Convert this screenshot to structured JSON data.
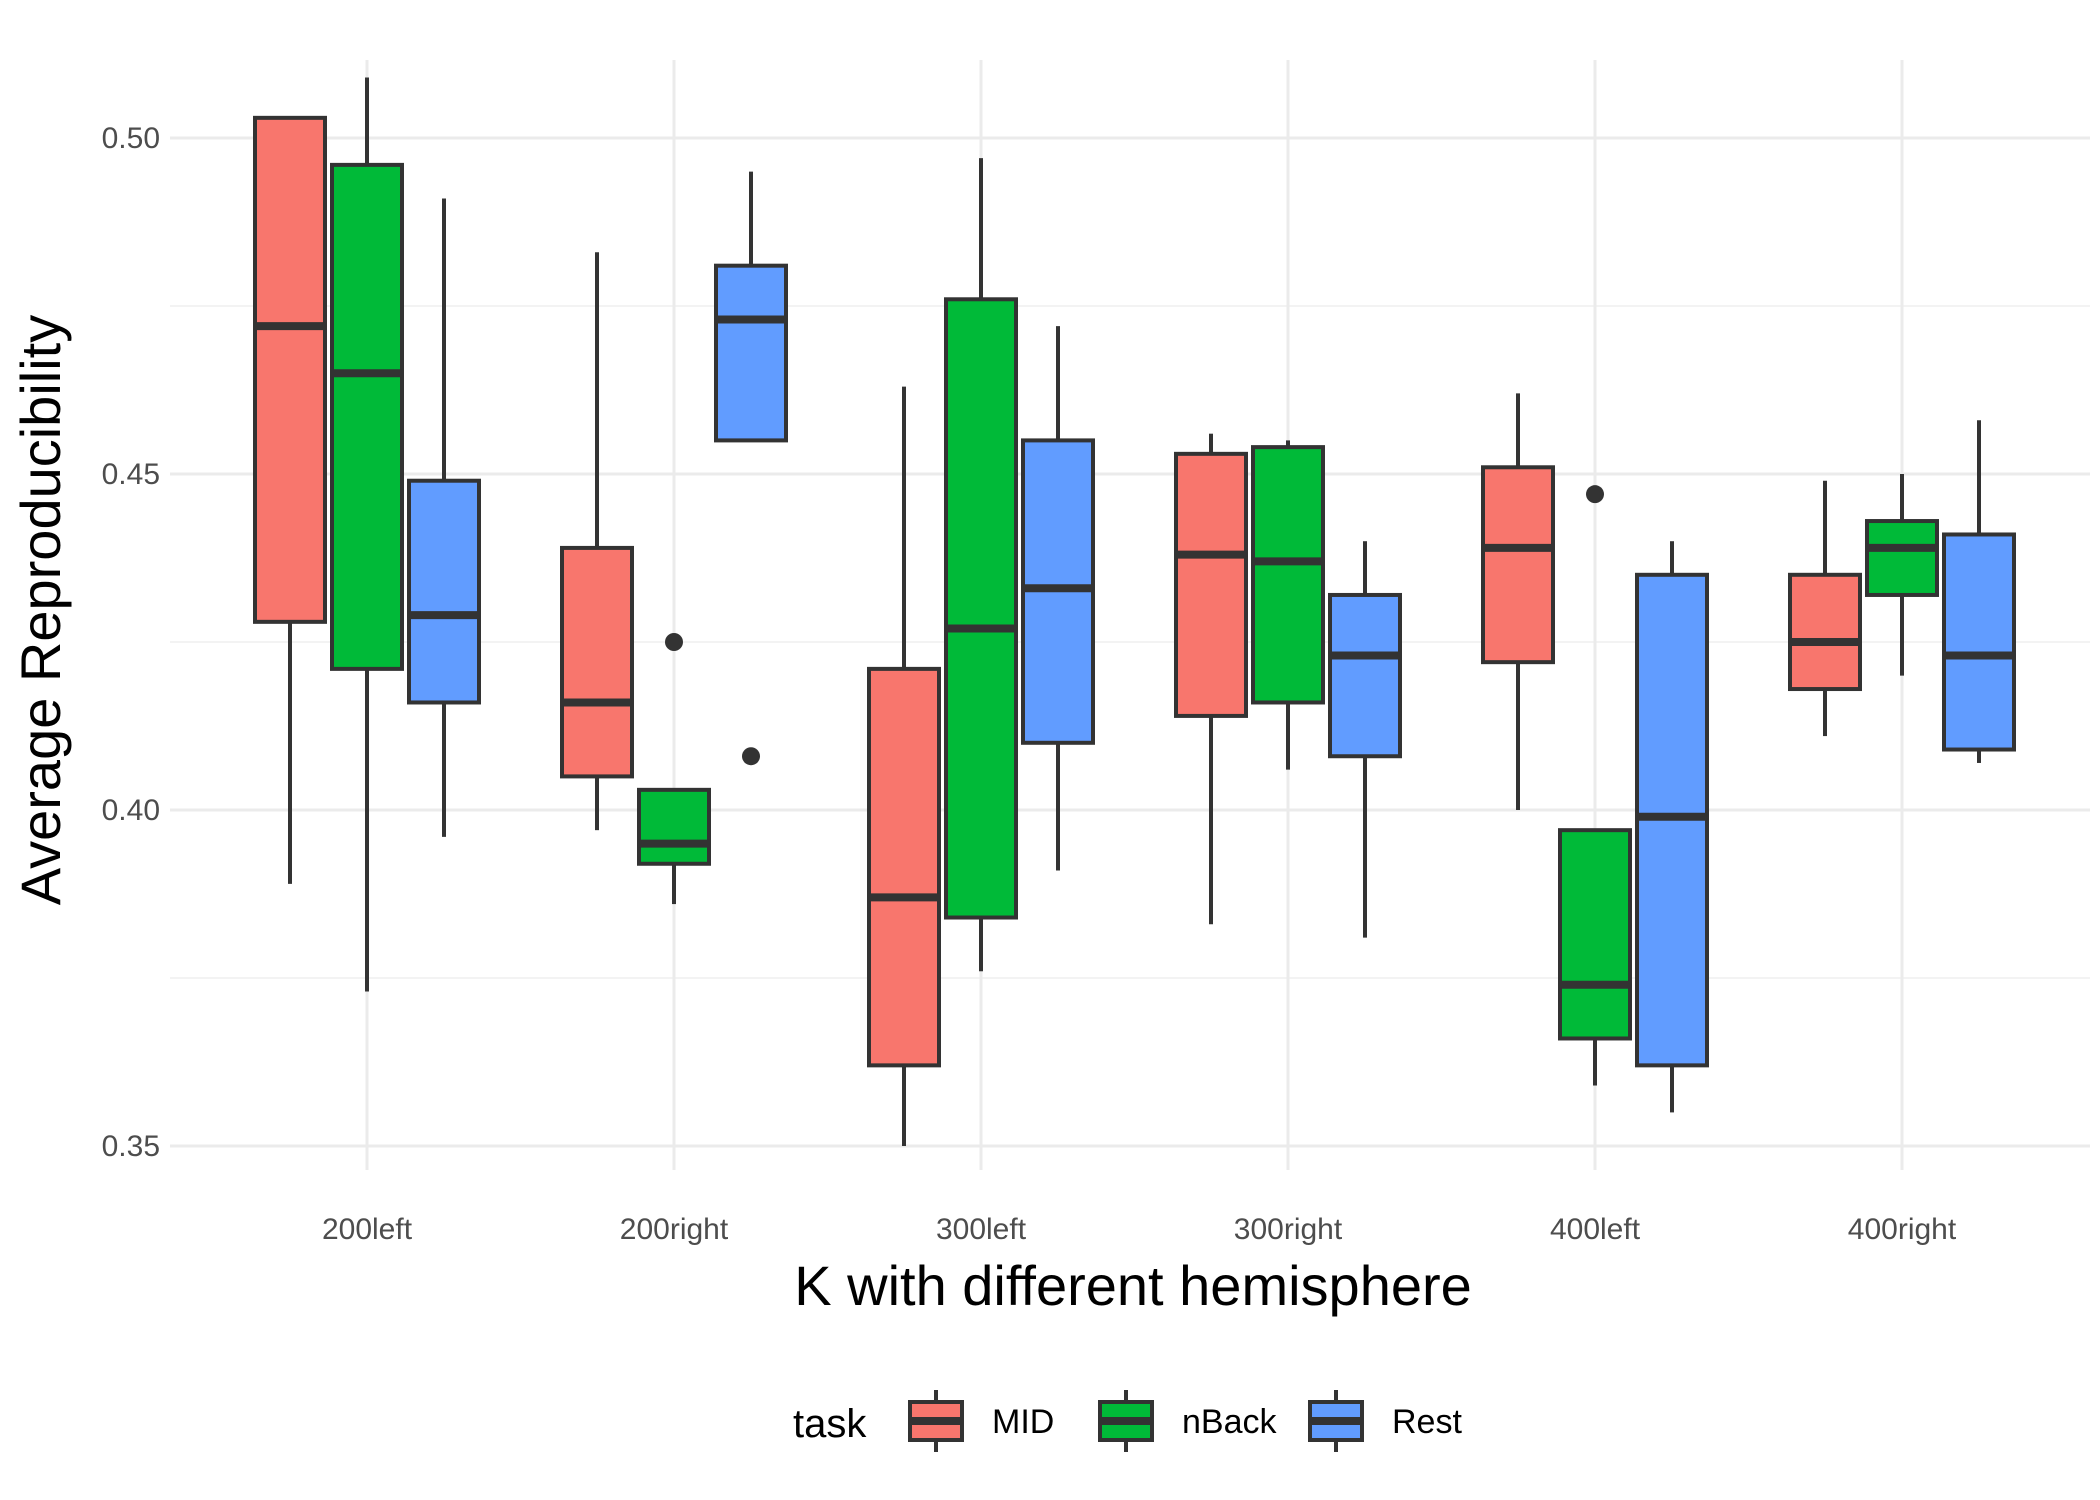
{
  "chart_data": {
    "type": "boxplot",
    "title": "",
    "xlabel": "K with different hemisphere",
    "ylabel": "Average Reproducibility",
    "ylim": [
      0.34,
      0.52
    ],
    "yticks": [
      "0.35",
      "0.40",
      "0.45",
      "0.50"
    ],
    "ytick_values": [
      0.35,
      0.4,
      0.45,
      0.5
    ],
    "grid": true,
    "legend": {
      "title": "task",
      "placement": "bottom"
    },
    "categories": [
      "200left",
      "200right",
      "300left",
      "300right",
      "400left",
      "400right"
    ],
    "series": [
      {
        "name": "MID",
        "color": "#F8766D",
        "boxes": [
          {
            "min": 0.389,
            "q1": 0.428,
            "median": 0.472,
            "q3": 0.503,
            "max": 0.503,
            "outliers": []
          },
          {
            "min": 0.397,
            "q1": 0.405,
            "median": 0.416,
            "q3": 0.439,
            "max": 0.483,
            "outliers": []
          },
          {
            "min": 0.35,
            "q1": 0.362,
            "median": 0.387,
            "q3": 0.421,
            "max": 0.463,
            "outliers": []
          },
          {
            "min": 0.383,
            "q1": 0.414,
            "median": 0.438,
            "q3": 0.453,
            "max": 0.456,
            "outliers": []
          },
          {
            "min": 0.4,
            "q1": 0.422,
            "median": 0.439,
            "q3": 0.451,
            "max": 0.462,
            "outliers": []
          },
          {
            "min": 0.411,
            "q1": 0.418,
            "median": 0.425,
            "q3": 0.435,
            "max": 0.449,
            "outliers": []
          }
        ]
      },
      {
        "name": "nBack",
        "color": "#00BA38",
        "boxes": [
          {
            "min": 0.373,
            "q1": 0.421,
            "median": 0.465,
            "q3": 0.496,
            "max": 0.509,
            "outliers": []
          },
          {
            "min": 0.386,
            "q1": 0.392,
            "median": 0.395,
            "q3": 0.403,
            "max": 0.403,
            "outliers": [
              0.425
            ]
          },
          {
            "min": 0.376,
            "q1": 0.384,
            "median": 0.427,
            "q3": 0.476,
            "max": 0.497,
            "outliers": []
          },
          {
            "min": 0.406,
            "q1": 0.416,
            "median": 0.437,
            "q3": 0.454,
            "max": 0.455,
            "outliers": []
          },
          {
            "min": 0.359,
            "q1": 0.366,
            "median": 0.374,
            "q3": 0.397,
            "max": 0.397,
            "outliers": [
              0.447
            ]
          },
          {
            "min": 0.42,
            "q1": 0.432,
            "median": 0.439,
            "q3": 0.443,
            "max": 0.45,
            "outliers": []
          }
        ]
      },
      {
        "name": "Rest",
        "color": "#619CFF",
        "boxes": [
          {
            "min": 0.396,
            "q1": 0.416,
            "median": 0.429,
            "q3": 0.449,
            "max": 0.491,
            "outliers": []
          },
          {
            "min": 0.455,
            "q1": 0.455,
            "median": 0.473,
            "q3": 0.481,
            "max": 0.495,
            "outliers": [
              0.408
            ]
          },
          {
            "min": 0.391,
            "q1": 0.41,
            "median": 0.433,
            "q3": 0.455,
            "max": 0.472,
            "outliers": []
          },
          {
            "min": 0.381,
            "q1": 0.408,
            "median": 0.423,
            "q3": 0.432,
            "max": 0.44,
            "outliers": []
          },
          {
            "min": 0.355,
            "q1": 0.362,
            "median": 0.399,
            "q3": 0.435,
            "max": 0.44,
            "outliers": []
          },
          {
            "min": 0.407,
            "q1": 0.409,
            "median": 0.423,
            "q3": 0.441,
            "max": 0.458,
            "outliers": []
          }
        ]
      }
    ]
  }
}
